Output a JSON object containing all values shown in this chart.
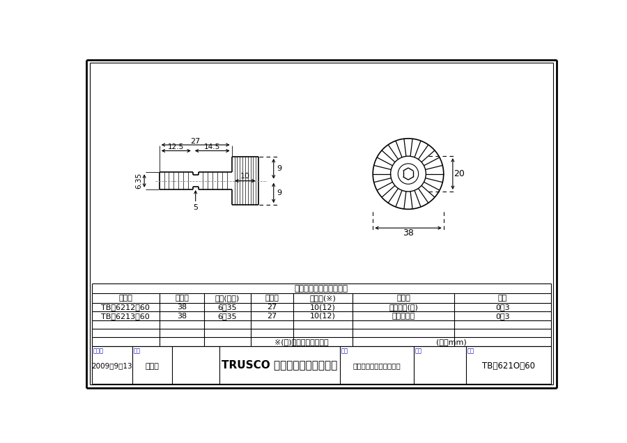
{
  "bg_color": "#ffffff",
  "line_color": "#000000",
  "blue_color": "#0000bb",
  "title_text": "六角軸付ホイールブラシ",
  "table_headers": [
    "品　番",
    "外　径",
    "軸径(対辺)",
    "軸　長",
    "根元厚(※)",
    "線　材",
    "線径"
  ],
  "table_row1": [
    "TB－6212－60",
    "38",
    "6．35",
    "27",
    "10(12)",
    "ワイヤー(鉄)",
    "0．3"
  ],
  "table_row2": [
    "TB－6213－60",
    "38",
    "6．35",
    "27",
    "10(12)",
    "ステンレス",
    "0．3"
  ],
  "note_text": "※(内)は金具込みの厘さ",
  "unit_text": "(単位mm)",
  "footer_date_label": "作成日",
  "footer_date": "2009．9．13",
  "footer_check_label": "検図",
  "footer_checker": "西　嶽",
  "footer_company": "TRUSCO トラスコ中山株式会社",
  "footer_item_label": "品名",
  "footer_item": "六角軸付ホイールブラシ",
  "footer_num_label": "品番",
  "footer_num": "TB－621O－60"
}
